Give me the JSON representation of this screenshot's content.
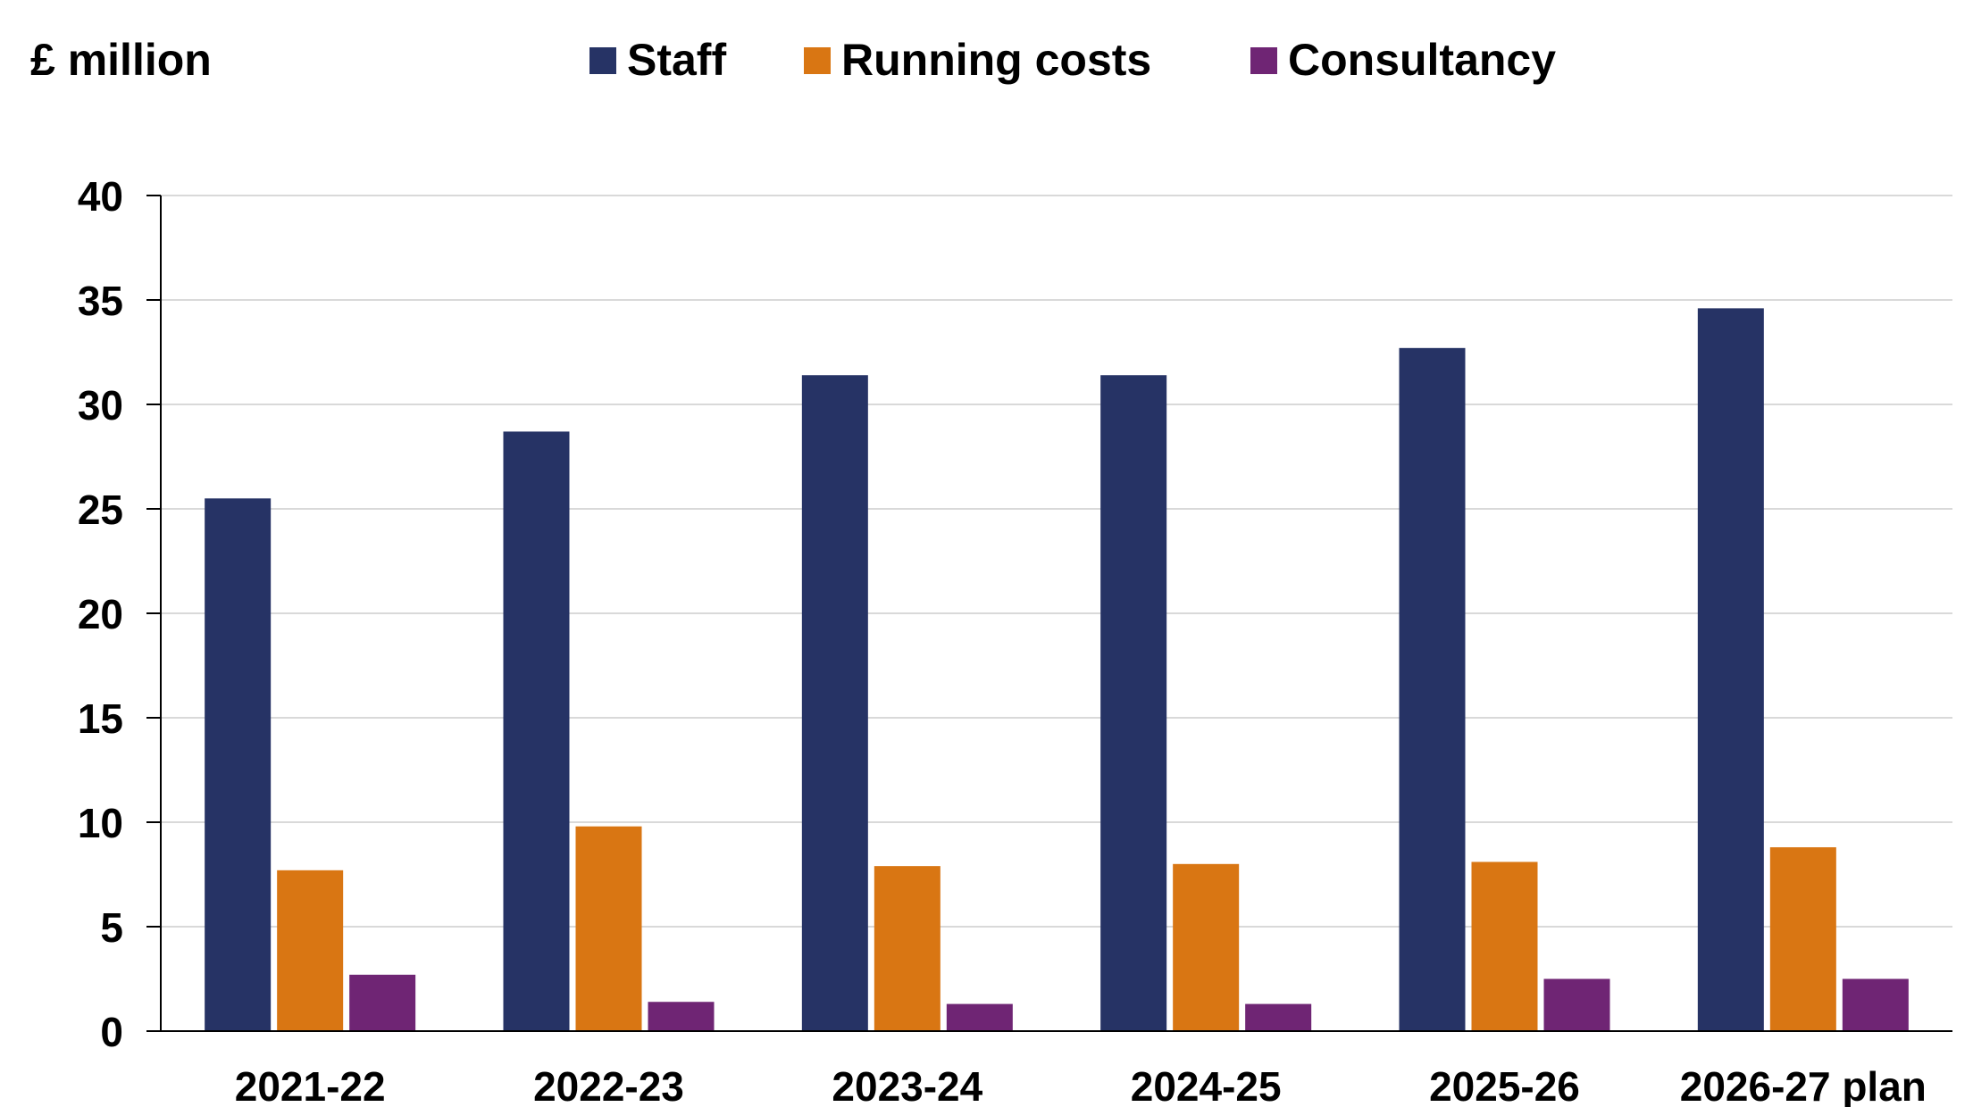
{
  "chart_data": {
    "type": "bar",
    "unit_label": "£ million",
    "categories": [
      "2021-22",
      "2022-23",
      "2023-24",
      "2024-25",
      "2025-26",
      "2026-27 plan"
    ],
    "series": [
      {
        "name": "Staff",
        "color": "#263365",
        "values": [
          25.5,
          28.7,
          31.4,
          31.4,
          32.7,
          34.6
        ]
      },
      {
        "name": "Running costs",
        "color": "#D97613",
        "values": [
          7.7,
          9.8,
          7.9,
          8.0,
          8.1,
          8.8
        ]
      },
      {
        "name": "Consultancy",
        "color": "#6F2574",
        "values": [
          2.7,
          1.4,
          1.3,
          1.3,
          2.5,
          2.5
        ]
      }
    ],
    "ylim": [
      0,
      40
    ],
    "yticks": [
      "0",
      "5",
      "10",
      "15",
      "20",
      "25",
      "30",
      "35",
      "40"
    ],
    "grid": true,
    "legend_position": "top"
  }
}
